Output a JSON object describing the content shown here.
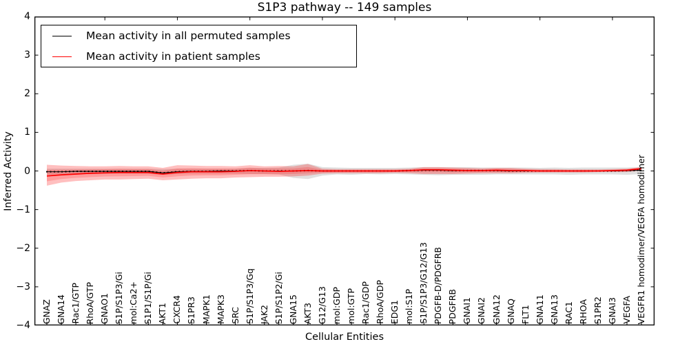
{
  "figure": {
    "title": "S1P3 pathway -- 149 samples",
    "xlabel": "Cellular Entities",
    "ylabel": "Inferred Activity"
  },
  "legend": {
    "items": [
      {
        "name": "permuted",
        "label": "Mean activity in all permuted samples",
        "color": "#000000"
      },
      {
        "name": "patient",
        "label": "Mean activity in patient samples",
        "color": "#ff0000"
      }
    ]
  },
  "axes": {
    "ytick_labels": [
      "4",
      "3",
      "2",
      "1",
      "0",
      "−1",
      "−2",
      "−3",
      "−4"
    ],
    "ytick_values": [
      4,
      3,
      2,
      1,
      0,
      -1,
      -2,
      -3,
      -4
    ]
  },
  "chart_data": {
    "type": "line",
    "title": "S1P3 pathway -- 149 samples",
    "xlabel": "Cellular Entities",
    "ylabel": "Inferred Activity",
    "ylim": [
      -4,
      4
    ],
    "grid": false,
    "legend_position": "upper left",
    "categories": [
      "GNAZ",
      "GNA14",
      "Rac1/GTP",
      "RhoA/GTP",
      "GNAO1",
      "S1P/S1P3/Gi",
      "mol:Ca2+",
      "S1P1/S1P/Gi",
      "AKT1",
      "CXCR4",
      "S1PR3",
      "MAPK1",
      "MAPK3",
      "SRC",
      "S1P/S1P3/Gq",
      "JAK2",
      "S1P/S1P2/Gi",
      "GNA15",
      "AKT3",
      "G12/G13",
      "mol:GDP",
      "mol:GTP",
      "Rac1/GDP",
      "RhoA/GDP",
      "EDG1",
      "mol:S1P",
      "S1P/S1P3/G12/G13",
      "PDGFB-D/PDGFRB",
      "PDGFRB",
      "GNAI1",
      "GNAI2",
      "GNA12",
      "GNAQ",
      "FLT1",
      "GNA11",
      "GNA13",
      "RAC1",
      "RHOA",
      "S1PR2",
      "GNAI3",
      "VEGFA",
      "VEGFR1 homodimer/VEGFA homodimer"
    ],
    "series": [
      {
        "name": "Mean activity in all permuted samples",
        "color": "#000000",
        "style": "dotted",
        "values": [
          -0.02,
          -0.02,
          -0.01,
          -0.01,
          -0.01,
          -0.01,
          -0.01,
          -0.01,
          -0.05,
          -0.02,
          -0.01,
          -0.01,
          0,
          0,
          0.01,
          0,
          0,
          0,
          0.01,
          0,
          0,
          0,
          0,
          0,
          0,
          0.01,
          0.02,
          0.02,
          0.01,
          0.01,
          0.01,
          0.01,
          0,
          0,
          0,
          0,
          0,
          0,
          0,
          0,
          0.01,
          0.02
        ]
      },
      {
        "name": "Mean activity in patient samples",
        "color": "#ff0000",
        "style": "solid",
        "values": [
          -0.13,
          -0.1,
          -0.08,
          -0.06,
          -0.05,
          -0.04,
          -0.04,
          -0.04,
          -0.08,
          -0.04,
          -0.02,
          -0.02,
          -0.02,
          -0.01,
          0.01,
          0,
          -0.01,
          0,
          0.01,
          0,
          0,
          0,
          0,
          0,
          0,
          0.01,
          0.03,
          0.03,
          0.02,
          0.01,
          0.01,
          0.02,
          0.01,
          0.01,
          0,
          0,
          0,
          0,
          0,
          0.01,
          0.02,
          0.06
        ]
      }
    ],
    "bands": [
      {
        "name": "permuted-std-band",
        "color": "#000000",
        "opacity": 0.12,
        "upper": [
          0.06,
          0.06,
          0.06,
          0.06,
          0.06,
          0.06,
          0.06,
          0.06,
          0.05,
          0.06,
          0.06,
          0.06,
          0.06,
          0.06,
          0.08,
          0.08,
          0.09,
          0.16,
          0.19,
          0.1,
          0.09,
          0.08,
          0.08,
          0.08,
          0.08,
          0.09,
          0.1,
          0.1,
          0.1,
          0.1,
          0.09,
          0.09,
          0.09,
          0.09,
          0.08,
          0.09,
          0.08,
          0.09,
          0.09,
          0.09,
          0.09,
          0.1
        ],
        "lower": [
          -0.1,
          -0.08,
          -0.08,
          -0.08,
          -0.07,
          -0.07,
          -0.07,
          -0.07,
          -0.1,
          -0.08,
          -0.07,
          -0.07,
          -0.07,
          -0.07,
          -0.08,
          -0.08,
          -0.09,
          -0.18,
          -0.21,
          -0.12,
          -0.09,
          -0.1,
          -0.08,
          -0.09,
          -0.08,
          -0.09,
          -0.1,
          -0.11,
          -0.1,
          -0.1,
          -0.1,
          -0.09,
          -0.09,
          -0.09,
          -0.09,
          -0.09,
          -0.1,
          -0.09,
          -0.09,
          -0.09,
          -0.1,
          -0.08
        ]
      },
      {
        "name": "patient-std-band",
        "color": "#ff0000",
        "opacity": 0.25,
        "upper": [
          0.16,
          0.14,
          0.13,
          0.12,
          0.12,
          0.13,
          0.12,
          0.12,
          0.08,
          0.15,
          0.14,
          0.13,
          0.13,
          0.12,
          0.15,
          0.12,
          0.13,
          0.12,
          0.18,
          0.06,
          0.05,
          0.05,
          0.05,
          0.05,
          0.05,
          0.06,
          0.1,
          0.1,
          0.09,
          0.08,
          0.07,
          0.08,
          0.08,
          0.06,
          0.05,
          0.05,
          0.04,
          0.04,
          0.04,
          0.05,
          0.06,
          0.1
        ],
        "lower": [
          -0.38,
          -0.3,
          -0.26,
          -0.24,
          -0.22,
          -0.22,
          -0.21,
          -0.2,
          -0.24,
          -0.22,
          -0.2,
          -0.19,
          -0.19,
          -0.17,
          -0.16,
          -0.15,
          -0.15,
          -0.14,
          -0.12,
          -0.07,
          -0.06,
          -0.06,
          -0.06,
          -0.06,
          -0.05,
          -0.06,
          -0.08,
          -0.08,
          -0.08,
          -0.07,
          -0.06,
          -0.06,
          -0.06,
          -0.05,
          -0.04,
          -0.04,
          -0.04,
          -0.04,
          -0.03,
          -0.03,
          -0.03,
          0.01
        ]
      }
    ]
  }
}
